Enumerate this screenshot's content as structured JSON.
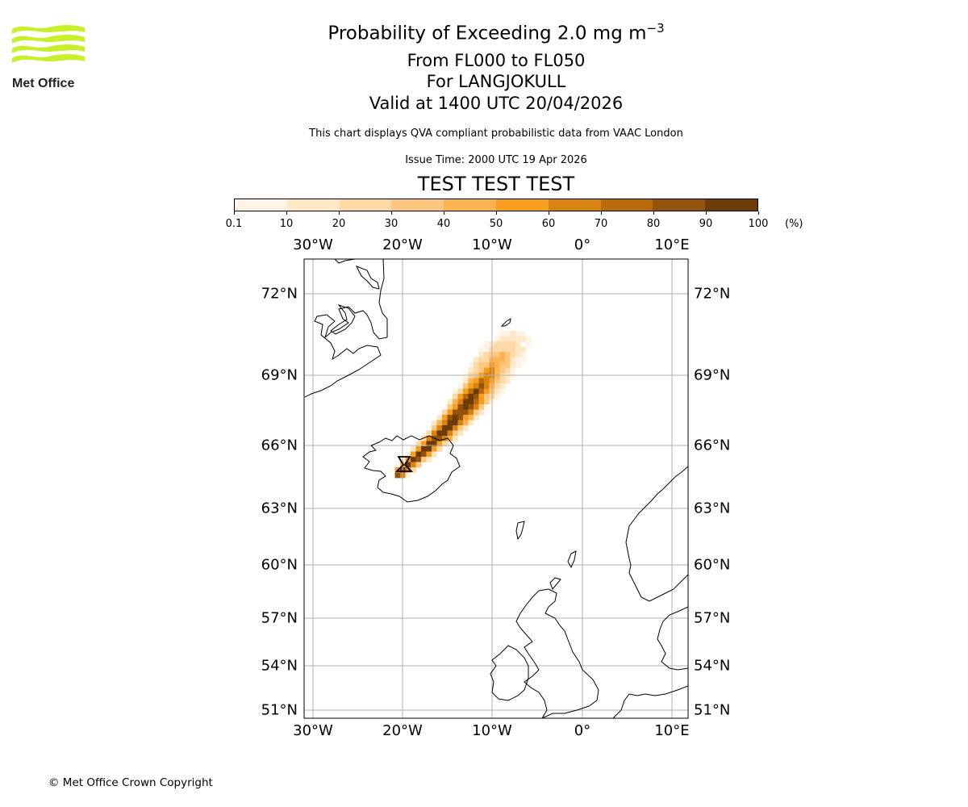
{
  "header": {
    "title_prefix": "Probability of Exceeding 2.0 mg m",
    "title_exponent": "−3",
    "levels": "From FL000 to FL050",
    "location": "For LANGJOKULL",
    "valid": "Valid at 1400 UTC 20/04/2026",
    "subtitle": "This chart displays QVA compliant probabilistic data from VAAC London",
    "issue_time": "Issue Time: 2000 UTC 19 Apr 2026",
    "test_banner": "TEST TEST TEST"
  },
  "logo": {
    "text": "Met Office"
  },
  "footer": {
    "copyright": "© Met Office Crown Copyright"
  },
  "colorbar": {
    "unit": "(%)",
    "ticks": [
      "0.1",
      "10",
      "20",
      "30",
      "40",
      "50",
      "60",
      "70",
      "80",
      "90",
      "100"
    ],
    "colors": [
      "#fff4e5",
      "#fee8c8",
      "#fed9a6",
      "#fdc77f",
      "#fdb34f",
      "#f89e1c",
      "#d98411",
      "#b96b0c",
      "#94530a",
      "#6b3b08"
    ]
  },
  "map": {
    "lon_labels": [
      "30°W",
      "20°W",
      "10°W",
      "0°",
      "10°E"
    ],
    "lat_labels": [
      "72°N",
      "69°N",
      "66°N",
      "63°N",
      "60°N",
      "57°N",
      "54°N",
      "51°N"
    ],
    "volcano": "LANGJOKULL",
    "colors": {
      "banner": "#e60000",
      "logo_green": "#c8f02a",
      "grid": "#b0b0b0"
    }
  }
}
